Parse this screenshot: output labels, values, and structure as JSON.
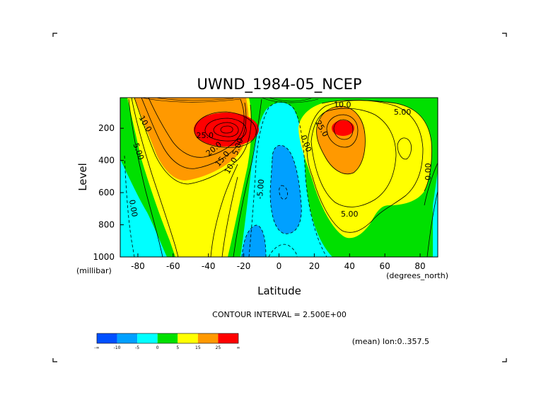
{
  "chart_data": {
    "type": "heatmap",
    "subtype": "filled-contour",
    "title": "UWND_1984-05_NCEP",
    "xlabel": "Latitude",
    "xunit_label": "(degrees_north)",
    "ylabel": "Level",
    "yunit_label": "(millibar)",
    "xlim": [
      -90,
      90
    ],
    "ylim": [
      1000,
      10
    ],
    "y_inverted": true,
    "x_ticks": [
      -80,
      -60,
      -40,
      -20,
      0,
      20,
      40,
      60,
      80
    ],
    "y_ticks": [
      200,
      400,
      600,
      800,
      1000
    ],
    "contour_interval_label": "CONTOUR INTERVAL = 2.500E+00",
    "footnote": "(mean) lon:0..357.5",
    "contour_labels": [
      {
        "text": "10.0",
        "lat": -77,
        "level": 180,
        "angle": 60
      },
      {
        "text": "5.00",
        "lat": -81,
        "level": 350,
        "angle": 70
      },
      {
        "text": "0.00",
        "lat": -84,
        "level": 700,
        "angle": 80
      },
      {
        "text": "25.0",
        "lat": -42,
        "level": 260,
        "angle": 0
      },
      {
        "text": "20.0",
        "lat": -36,
        "level": 340,
        "angle": -40
      },
      {
        "text": "15.0",
        "lat": -31,
        "level": 400,
        "angle": -50
      },
      {
        "text": "10.0",
        "lat": -26,
        "level": 440,
        "angle": -60
      },
      {
        "text": "5.00",
        "lat": -22,
        "level": 320,
        "angle": -70
      },
      {
        "text": "-5.00",
        "lat": -9,
        "level": 580,
        "angle": -85
      },
      {
        "text": "0.00",
        "lat": 14,
        "level": 300,
        "angle": 70
      },
      {
        "text": "10.0",
        "lat": 36,
        "level": 70,
        "angle": 0
      },
      {
        "text": "25.0",
        "lat": 23,
        "level": 210,
        "angle": 60
      },
      {
        "text": "5.00",
        "lat": 70,
        "level": 115,
        "angle": 0
      },
      {
        "text": "5.00",
        "lat": 40,
        "level": 750,
        "angle": 0
      },
      {
        "text": "0.00",
        "lat": 86,
        "level": 470,
        "angle": -90
      }
    ],
    "colorbar": {
      "colors": [
        "#0050ff",
        "#00a0ff",
        "#00ffff",
        "#00e000",
        "#ffff00",
        "#ff9900",
        "#ff0000"
      ],
      "tick_labels": [
        "-∞",
        "-10",
        "-5",
        "0",
        "5",
        "15",
        "25",
        "∞"
      ]
    },
    "features": {
      "southern_jet": {
        "lat": -30,
        "level": 190,
        "max": "≥25"
      },
      "northern_jet": {
        "lat": 38,
        "level": 200,
        "max": "≥25"
      },
      "tropical_easterlies": {
        "lat": 5,
        "level": 550,
        "min": "≤-5"
      }
    },
    "legend": "none",
    "grid": false
  }
}
